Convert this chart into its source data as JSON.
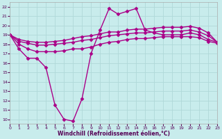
{
  "bg_color": "#c8ecec",
  "grid_color": "#b0d8d8",
  "line_color": "#aa0088",
  "marker": "D",
  "markersize": 2.5,
  "linewidth": 1.0,
  "xlabel": "Windchill (Refroidissement éolien,°C)",
  "xlim": [
    0,
    23
  ],
  "ylim": [
    9.5,
    22.5
  ],
  "yticks": [
    10,
    11,
    12,
    13,
    14,
    15,
    16,
    17,
    18,
    19,
    20,
    21,
    22
  ],
  "xticks": [
    0,
    1,
    2,
    3,
    4,
    5,
    6,
    7,
    8,
    9,
    10,
    11,
    12,
    13,
    14,
    15,
    16,
    17,
    18,
    19,
    20,
    21,
    22,
    23
  ],
  "lines": [
    [
      19.0,
      17.5,
      16.5,
      16.5,
      15.5,
      11.5,
      10.0,
      9.8,
      12.2,
      17.0,
      19.5,
      21.8,
      21.2,
      21.5,
      21.8,
      19.5,
      19.2,
      19.0,
      19.0,
      19.0,
      19.2,
      19.0,
      18.5,
      18.2
    ],
    [
      19.0,
      18.0,
      17.5,
      17.2,
      17.2,
      17.2,
      17.3,
      17.5,
      17.5,
      17.7,
      18.0,
      18.2,
      18.3,
      18.5,
      18.6,
      18.6,
      18.7,
      18.8,
      18.8,
      18.8,
      18.8,
      18.7,
      18.3,
      18.1
    ],
    [
      19.0,
      18.3,
      18.1,
      17.9,
      17.9,
      18.0,
      18.1,
      18.2,
      18.4,
      18.5,
      18.7,
      18.9,
      19.0,
      19.1,
      19.2,
      19.2,
      19.3,
      19.4,
      19.4,
      19.4,
      19.5,
      19.3,
      18.9,
      18.2
    ],
    [
      19.0,
      18.5,
      18.3,
      18.2,
      18.2,
      18.3,
      18.4,
      18.6,
      18.8,
      18.9,
      19.1,
      19.3,
      19.3,
      19.5,
      19.6,
      19.6,
      19.7,
      19.8,
      19.8,
      19.8,
      19.9,
      19.7,
      19.2,
      18.2
    ]
  ]
}
